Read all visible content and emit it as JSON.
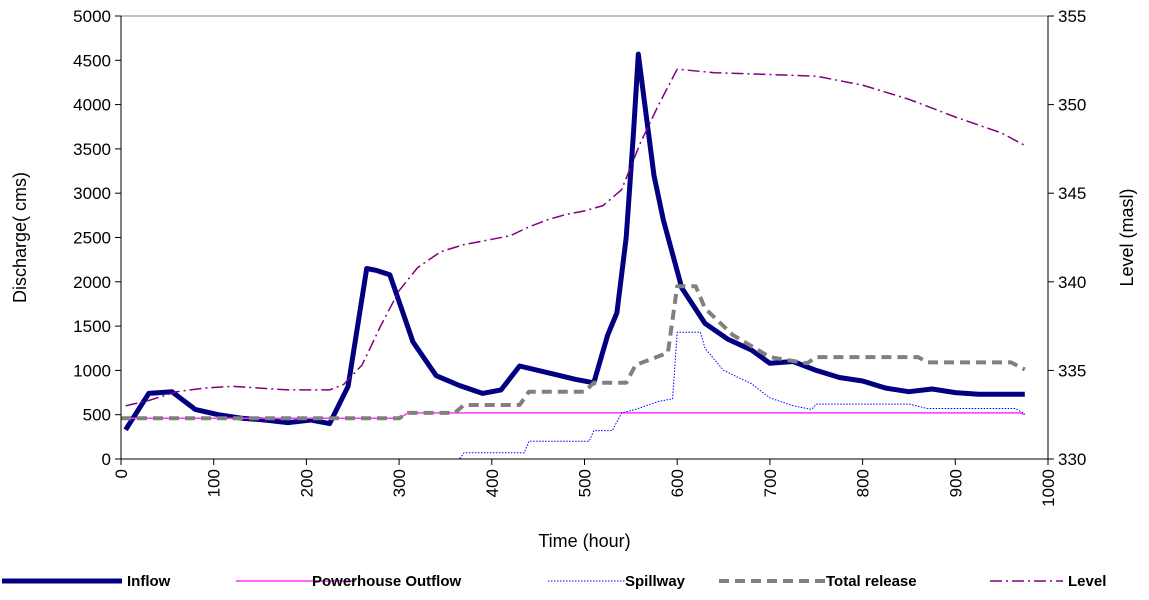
{
  "chart_data": {
    "type": "line",
    "title": "",
    "xlabel": "Time (hour)",
    "ylabel": "Discharge( cms)",
    "y2label": "Level (masl)",
    "xlim": [
      0,
      1000
    ],
    "ylim": [
      0,
      5000
    ],
    "y2lim": [
      330,
      355
    ],
    "xticks": [
      "0",
      "100",
      "200",
      "300",
      "400",
      "500",
      "600",
      "700",
      "800",
      "900",
      "1000"
    ],
    "yticks": [
      "0",
      "500",
      "1000",
      "1500",
      "2000",
      "2500",
      "3000",
      "3500",
      "4000",
      "4500",
      "5000"
    ],
    "y2ticks": [
      "330",
      "335",
      "340",
      "345",
      "350",
      "355"
    ],
    "grid": false,
    "legend_position": "bottom",
    "series": [
      {
        "name": "Inflow",
        "axis": "left",
        "color": "#000080",
        "style": "solid-thick",
        "x": [
          5,
          30,
          55,
          80,
          105,
          130,
          155,
          180,
          205,
          225,
          245,
          265,
          275,
          290,
          315,
          340,
          365,
          390,
          410,
          430,
          450,
          470,
          490,
          510,
          525,
          535,
          545,
          553,
          558,
          565,
          575,
          585,
          605,
          630,
          655,
          680,
          700,
          725,
          750,
          775,
          800,
          825,
          850,
          875,
          900,
          925,
          950,
          975
        ],
        "y": [
          330,
          740,
          760,
          560,
          500,
          460,
          440,
          410,
          440,
          400,
          820,
          2150,
          2130,
          2080,
          1320,
          940,
          830,
          740,
          780,
          1050,
          1000,
          950,
          900,
          860,
          1400,
          1650,
          2500,
          3700,
          4570,
          4000,
          3200,
          2700,
          1930,
          1530,
          1350,
          1230,
          1080,
          1100,
          1000,
          920,
          880,
          800,
          760,
          790,
          750,
          730,
          730,
          730
        ]
      },
      {
        "name": "Powerhouse Outflow",
        "axis": "left",
        "color": "#FF33FF",
        "style": "solid-thin",
        "x": [
          0,
          50,
          100,
          200,
          300,
          310,
          350,
          400,
          500,
          600,
          700,
          800,
          900,
          970,
          975
        ],
        "y": [
          460,
          460,
          460,
          460,
          460,
          520,
          520,
          520,
          520,
          520,
          520,
          520,
          520,
          520,
          500
        ]
      },
      {
        "name": "Spillway",
        "axis": "left",
        "color": "#0000FF",
        "style": "dotted",
        "x": [
          0,
          100,
          200,
          300,
          365,
          370,
          400,
          435,
          440,
          480,
          505,
          510,
          530,
          540,
          555,
          580,
          595,
          600,
          625,
          630,
          650,
          680,
          700,
          725,
          745,
          750,
          800,
          845,
          850,
          870,
          900,
          965,
          975
        ],
        "y": [
          0,
          0,
          0,
          0,
          0,
          70,
          70,
          70,
          200,
          200,
          200,
          320,
          320,
          520,
          560,
          650,
          680,
          1430,
          1430,
          1250,
          1000,
          850,
          690,
          600,
          560,
          620,
          620,
          620,
          620,
          570,
          570,
          570,
          510
        ]
      },
      {
        "name": "Total release",
        "axis": "left",
        "color": "#808080",
        "style": "dashed-thick",
        "x": [
          0,
          100,
          200,
          300,
          310,
          360,
          370,
          430,
          440,
          500,
          510,
          545,
          555,
          590,
          600,
          620,
          630,
          660,
          700,
          740,
          750,
          800,
          860,
          870,
          960,
          975
        ],
        "y": [
          460,
          460,
          460,
          460,
          520,
          520,
          610,
          610,
          760,
          760,
          860,
          860,
          1060,
          1200,
          1950,
          1950,
          1700,
          1400,
          1150,
          1080,
          1150,
          1150,
          1150,
          1090,
          1090,
          1010
        ]
      },
      {
        "name": "Level",
        "axis": "right",
        "color": "#800080",
        "style": "dash-dot",
        "x": [
          5,
          30,
          60,
          90,
          120,
          150,
          180,
          210,
          225,
          240,
          260,
          280,
          300,
          320,
          345,
          370,
          400,
          420,
          440,
          460,
          480,
          500,
          520,
          540,
          560,
          580,
          600,
          640,
          700,
          750,
          800,
          850,
          900,
          950,
          975
        ],
        "y": [
          333.0,
          333.3,
          333.8,
          334.0,
          334.1,
          334.0,
          333.9,
          333.9,
          333.9,
          334.2,
          335.3,
          337.5,
          339.5,
          340.8,
          341.7,
          342.1,
          342.4,
          342.6,
          343.1,
          343.5,
          343.8,
          344.0,
          344.3,
          345.2,
          347.8,
          350.0,
          352.0,
          351.8,
          351.7,
          351.6,
          351.1,
          350.3,
          349.3,
          348.4,
          347.7
        ]
      }
    ]
  }
}
